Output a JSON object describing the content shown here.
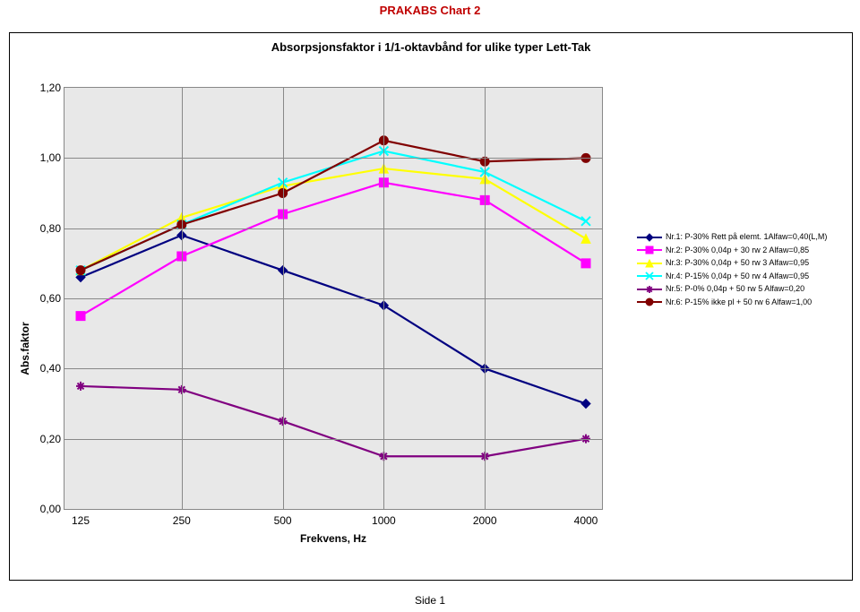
{
  "meta": {
    "header": "PRAKABS Chart 2",
    "footer": "Side 1"
  },
  "chart": {
    "type": "line",
    "title": "Absorpsjonsfaktor i 1/1-oktavbånd for ulike typer Lett-Tak",
    "xlabel": "Frekvens, Hz",
    "ylabel": "Abs.faktor",
    "background_color": "#e8e8e8",
    "grid_color": "#888888",
    "x_categories": [
      "125",
      "250",
      "500",
      "1000",
      "2000",
      "4000"
    ],
    "y_ticks": [
      "0,00",
      "0,20",
      "0,40",
      "0,60",
      "0,80",
      "1,00",
      "1,20"
    ],
    "ylim": [
      0.0,
      1.2
    ],
    "label_fontsize": 12,
    "title_fontsize": 13,
    "line_width": 2.2,
    "marker_size": 5,
    "series": [
      {
        "label": "Nr.1: P-30% Rett på elemt. 1Alfaw=0,40(L,M)",
        "color": "#000080",
        "marker": "diamond",
        "values": [
          0.66,
          0.78,
          0.68,
          0.58,
          0.4,
          0.3
        ]
      },
      {
        "label": "Nr.2: P-30% 0,04p + 30 rw 2 Alfaw=0,85",
        "color": "#ff00ff",
        "marker": "square",
        "values": [
          0.55,
          0.72,
          0.84,
          0.93,
          0.88,
          0.7
        ]
      },
      {
        "label": "Nr.3: P-30% 0,04p + 50 rw 3 Alfaw=0,95",
        "color": "#ffff00",
        "marker": "triangle",
        "values": [
          0.68,
          0.83,
          0.92,
          0.97,
          0.94,
          0.77
        ]
      },
      {
        "label": "Nr.4: P-15% 0,04p + 50 rw 4 Alfaw=0,95",
        "color": "#00ffff",
        "marker": "x",
        "values": [
          0.68,
          0.81,
          0.93,
          1.02,
          0.96,
          0.82
        ]
      },
      {
        "label": "Nr.5: P-0% 0,04p + 50 rw 5 Alfaw=0,20",
        "color": "#800080",
        "marker": "asterisk",
        "values": [
          0.35,
          0.34,
          0.25,
          0.15,
          0.15,
          0.2
        ]
      },
      {
        "label": "Nr.6: P-15% ikke pl + 50 rw 6 Alfaw=1,00",
        "color": "#800000",
        "marker": "circle",
        "values": [
          0.68,
          0.81,
          0.9,
          1.05,
          0.99,
          1.0
        ]
      }
    ]
  }
}
